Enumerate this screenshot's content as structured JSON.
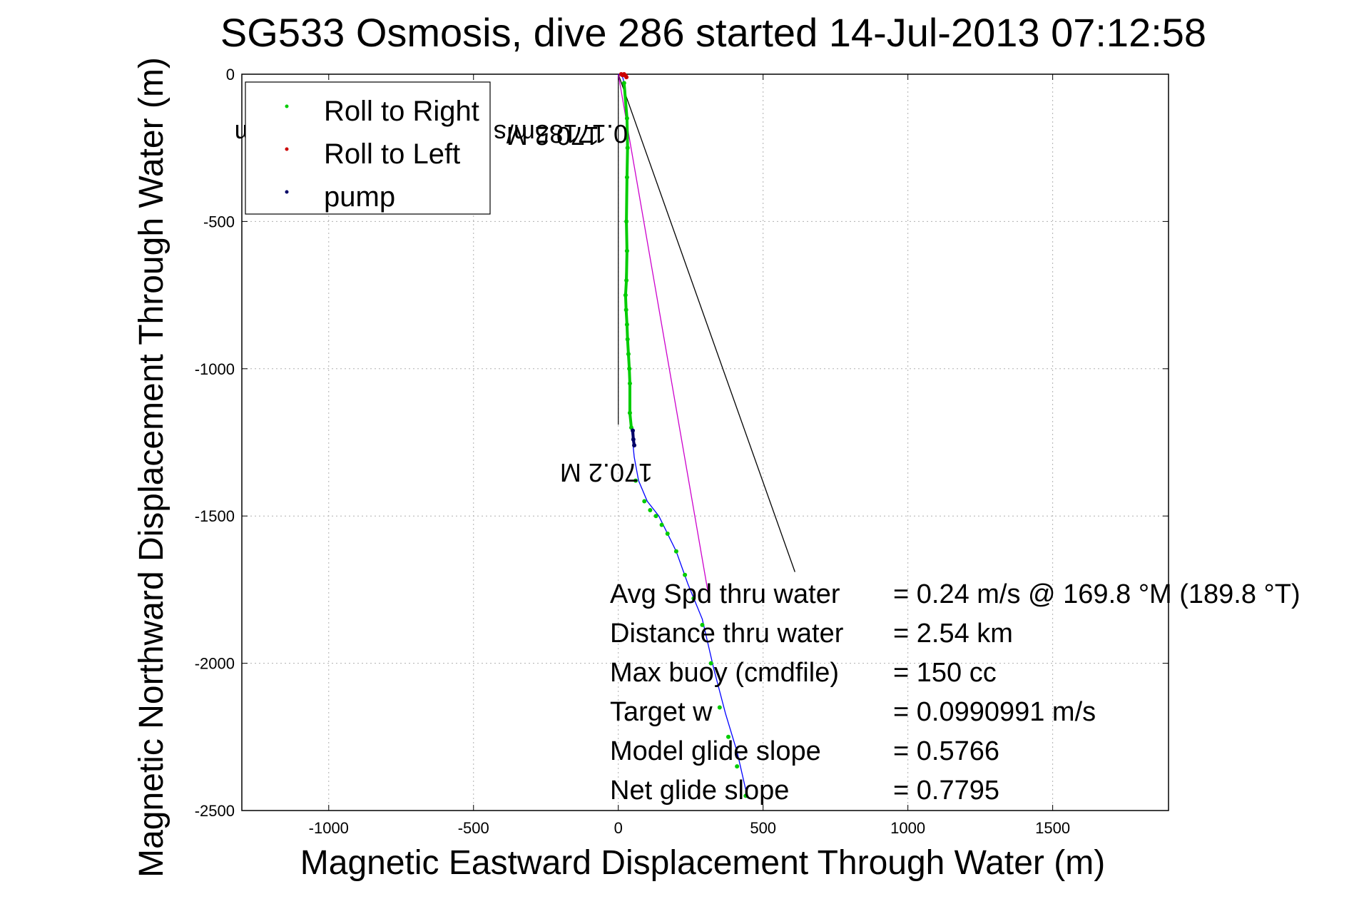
{
  "chart_data": {
    "type": "scatter",
    "title": "SG533 Osmosis, dive 286 started 14-Jul-2013 07:12:58",
    "xlabel": "Magnetic Eastward Displacement Through Water (m)",
    "ylabel": "Magnetic Northward Displacement Through Water (m)",
    "xlim": [
      -1300,
      1900
    ],
    "ylim": [
      -2500,
      0
    ],
    "xticks": [
      -1000,
      -500,
      0,
      500,
      1000,
      1500
    ],
    "yticks": [
      0,
      -500,
      -1000,
      -1500,
      -2000,
      -2500
    ],
    "xtick_labels": [
      "-1000",
      "-500",
      "0",
      "500",
      "1000",
      "1500"
    ],
    "ytick_labels": [
      "0",
      "-500",
      "-1000",
      "-1500",
      "-2000",
      "-2500"
    ],
    "grid": true,
    "legend_position": "top-left",
    "legend": [
      {
        "label": "Roll to Right",
        "color": "#00cc00"
      },
      {
        "label": "Roll to Left",
        "color": "#cc0000"
      },
      {
        "label": "pump",
        "color": "#000066"
      }
    ],
    "series": [
      {
        "name": "Roll to Right",
        "color": "#00cc00",
        "x": [
          20,
          30,
          32,
          30,
          28,
          30,
          28,
          25,
          27,
          30,
          32,
          35,
          38,
          40,
          40,
          45,
          60,
          90,
          110,
          130,
          150,
          170,
          200,
          230,
          260,
          290,
          320,
          350,
          380,
          410,
          440
        ],
        "y": [
          -30,
          -150,
          -250,
          -350,
          -500,
          -600,
          -700,
          -750,
          -800,
          -850,
          -900,
          -950,
          -1000,
          -1050,
          -1150,
          -1200,
          -1380,
          -1450,
          -1480,
          -1500,
          -1530,
          -1560,
          -1620,
          -1700,
          -1780,
          -1870,
          -2000,
          -2150,
          -2250,
          -2350,
          -2450
        ]
      },
      {
        "name": "Roll to Left",
        "color": "#cc0000",
        "x": [
          10,
          15,
          20,
          25,
          28
        ],
        "y": [
          0,
          -3,
          0,
          -5,
          -10
        ]
      },
      {
        "name": "pump",
        "color": "#000066",
        "x": [
          50,
          52,
          55
        ],
        "y": [
          -1210,
          -1240,
          -1260
        ]
      }
    ],
    "track": {
      "color": "#0000ff",
      "x": [
        0,
        15,
        25,
        28,
        30,
        30,
        25,
        27,
        35,
        40,
        40,
        45,
        55,
        70,
        100,
        140,
        170,
        200,
        240,
        290,
        330,
        370,
        410,
        445
      ],
      "y": [
        0,
        -10,
        -50,
        -150,
        -300,
        -500,
        -700,
        -800,
        -950,
        -1050,
        -1150,
        -1200,
        -1300,
        -1380,
        -1450,
        -1500,
        -1560,
        -1620,
        -1730,
        -1850,
        -2020,
        -2170,
        -2300,
        -2450
      ]
    },
    "bearing_lines": [
      {
        "color": "#000000",
        "x": [
          0,
          610
        ],
        "y": [
          0,
          -1690
        ]
      },
      {
        "color": "#cc00cc",
        "x": [
          0,
          310
        ],
        "y": [
          0,
          -1760
        ]
      }
    ],
    "annotations": [
      {
        "text": "170.2 M",
        "x": 0,
        "y": -170,
        "rotation": -100,
        "color": "#000000"
      },
      {
        "text": "0.17185m/s for2.9062hr =1.798km",
        "x": 10,
        "y": -170,
        "rotation": -100,
        "color": "#000000"
      },
      {
        "text": "170.2 M",
        "x": 160,
        "y": -1360,
        "rotation": -100,
        "color": "#000000"
      }
    ],
    "stats": [
      {
        "label": "Avg Spd thru water",
        "value": "=  0.24 m/s @ 169.8 °M (189.8 °T)"
      },
      {
        "label": "Distance thru water",
        "value": "=  2.54 km"
      },
      {
        "label": "Max buoy (cmdfile)",
        "value": "= 150 cc"
      },
      {
        "label": "Target w",
        "value": "= 0.0990991 m/s"
      },
      {
        "label": "Model glide slope",
        "value": "= 0.5766"
      },
      {
        "label": "Net glide slope",
        "value": "= 0.7795"
      }
    ]
  }
}
